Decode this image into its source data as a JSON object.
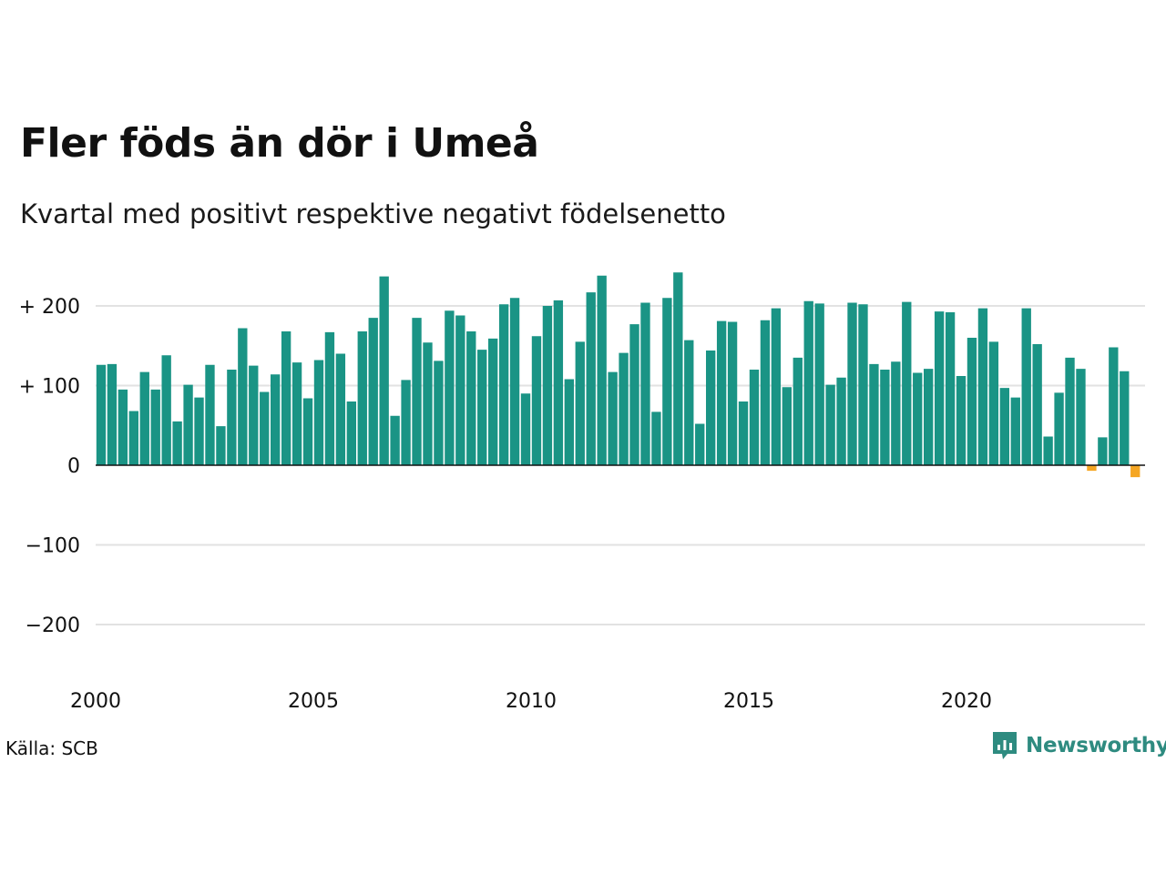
{
  "title": "Fler föds än dör i Umeå",
  "subtitle": "Kvartal med positivt respektive negativt födelsenetto",
  "source": "Källa: SCB",
  "brand": "Newsworthy",
  "colors": {
    "positive": "#1a9485",
    "negative": "#f5a623",
    "grid": "#e2e2e2",
    "brand": "#2e8b80"
  },
  "chart_data": {
    "type": "bar",
    "title": "Fler föds än dör i Umeå",
    "subtitle": "Kvartal med positivt respektive negativt födelsenetto",
    "xlabel": "",
    "ylabel": "",
    "ylim": [
      -250,
      250
    ],
    "grid": true,
    "y_ticks": [
      {
        "value": 200,
        "label": "+ 200"
      },
      {
        "value": 100,
        "label": "+ 100"
      },
      {
        "value": 0,
        "label": "0"
      },
      {
        "value": -100,
        "label": "−100"
      },
      {
        "value": -200,
        "label": "−200"
      }
    ],
    "x_ticks": [
      {
        "value": 2000,
        "label": "2000"
      },
      {
        "value": 2005,
        "label": "2005"
      },
      {
        "value": 2010,
        "label": "2010"
      },
      {
        "value": 2015,
        "label": "2015"
      },
      {
        "value": 2020,
        "label": "2020"
      }
    ],
    "start": "2000 Q1",
    "values": [
      126,
      127,
      95,
      68,
      117,
      95,
      138,
      55,
      101,
      85,
      126,
      49,
      120,
      172,
      125,
      92,
      114,
      168,
      129,
      84,
      132,
      167,
      140,
      80,
      168,
      185,
      237,
      62,
      107,
      185,
      154,
      131,
      194,
      188,
      168,
      145,
      159,
      202,
      210,
      90,
      162,
      200,
      207,
      108,
      155,
      217,
      238,
      117,
      141,
      177,
      204,
      67,
      210,
      242,
      157,
      52,
      144,
      181,
      180,
      80,
      120,
      182,
      197,
      98,
      135,
      206,
      203,
      101,
      110,
      204,
      202,
      127,
      120,
      130,
      205,
      116,
      121,
      193,
      192,
      112,
      160,
      197,
      155,
      97,
      85,
      197,
      152,
      36,
      91,
      135,
      121,
      -7,
      35,
      148,
      118,
      -15
    ]
  }
}
